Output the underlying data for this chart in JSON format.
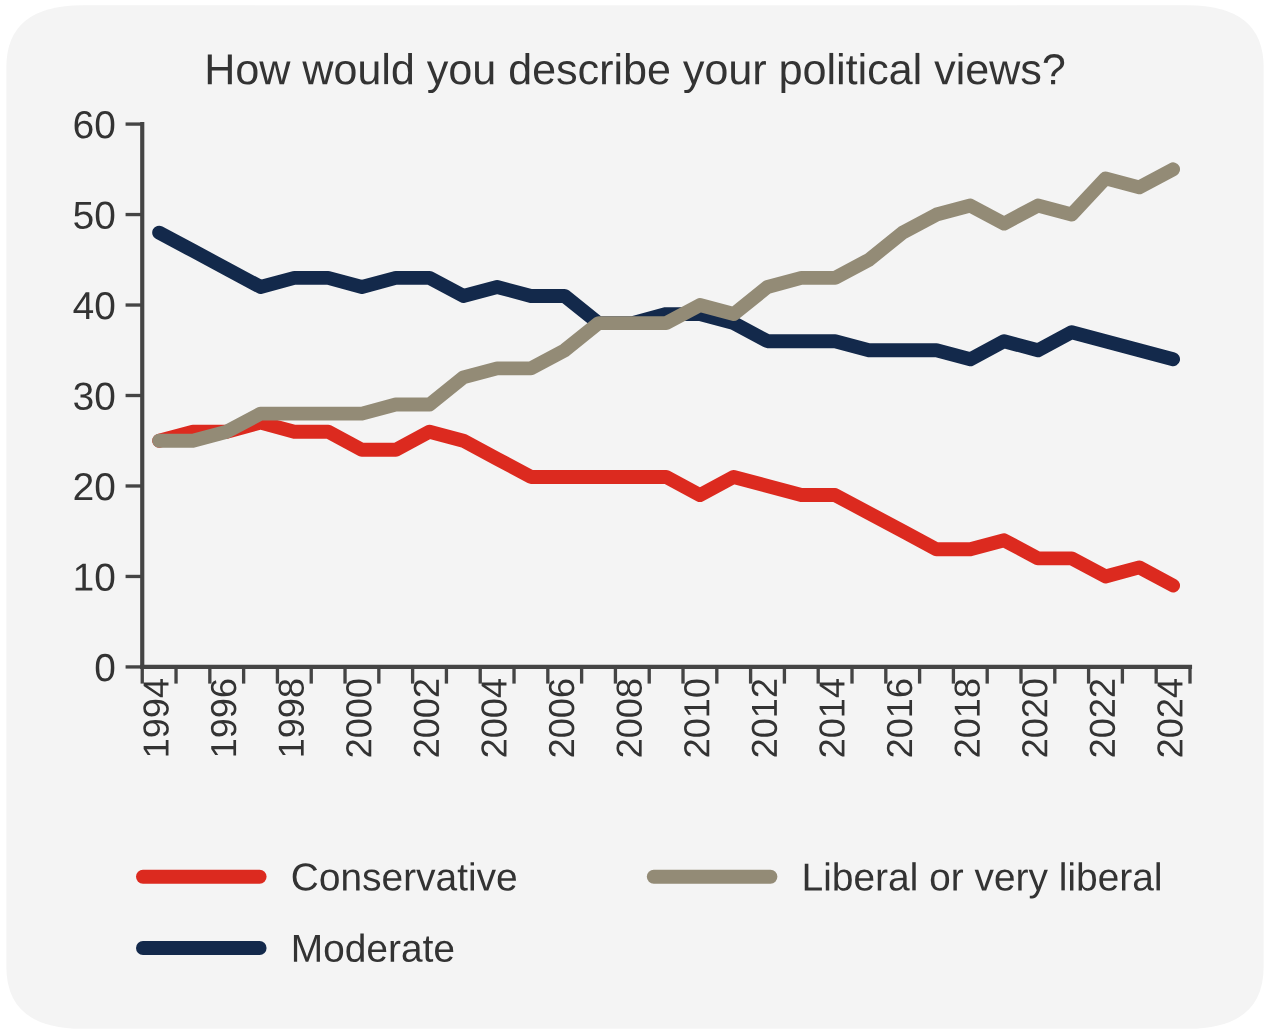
{
  "chart_data": {
    "type": "line",
    "title": "How would you describe your political views?",
    "categories": [
      "1994",
      null,
      "1996",
      null,
      "1998",
      null,
      "2000",
      null,
      "2002",
      null,
      "2004",
      null,
      "2006",
      null,
      "2008",
      null,
      "2010",
      null,
      "2012",
      null,
      "2014",
      null,
      "2016",
      null,
      "2018",
      null,
      "2020",
      null,
      "2022",
      null,
      "2024"
    ],
    "series": [
      {
        "name": "Conservative",
        "color": "#dc2a1f",
        "values": [
          25,
          26,
          26,
          27,
          26,
          26,
          24,
          24,
          26,
          25,
          23,
          21,
          21,
          21,
          21,
          21,
          19,
          21,
          20,
          19,
          19,
          17,
          15,
          13,
          13,
          14,
          12,
          12,
          10,
          11,
          9
        ]
      },
      {
        "name": "Moderate",
        "color": "#13294b",
        "values": [
          48,
          46,
          44,
          42,
          43,
          43,
          42,
          43,
          43,
          41,
          42,
          41,
          41,
          38,
          38,
          39,
          39,
          38,
          36,
          36,
          36,
          35,
          35,
          35,
          34,
          36,
          35,
          37,
          36,
          35,
          34
        ]
      },
      {
        "name": "Liberal or very liberal",
        "color": "#938b76",
        "values": [
          25,
          25,
          26,
          28,
          28,
          28,
          28,
          29,
          29,
          32,
          33,
          33,
          35,
          38,
          38,
          38,
          40,
          39,
          42,
          43,
          43,
          45,
          48,
          50,
          51,
          49,
          51,
          50,
          54,
          53,
          55
        ]
      }
    ],
    "ylim": [
      0,
      60
    ],
    "yticks": [
      0,
      10,
      20,
      30,
      40,
      50,
      60
    ],
    "grid": false,
    "legend": "bottom",
    "marker": "none",
    "line_style": "solid"
  }
}
